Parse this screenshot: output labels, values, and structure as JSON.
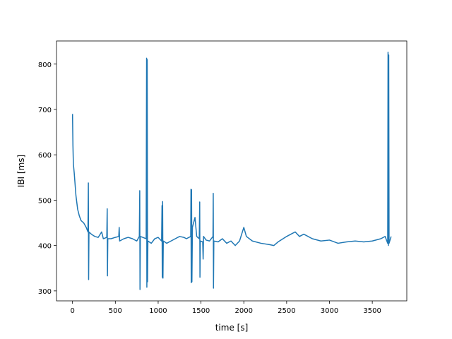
{
  "chart_data": {
    "type": "line",
    "xlabel": "time [s]",
    "ylabel": "IBI [ms]",
    "color": "#1f77b4",
    "x": [
      0,
      5,
      10,
      20,
      40,
      60,
      80,
      100,
      130,
      160,
      180,
      185,
      188,
      192,
      220,
      260,
      300,
      340,
      360,
      400,
      405,
      408,
      412,
      450,
      500,
      540,
      545,
      550,
      600,
      650,
      700,
      750,
      780,
      785,
      788,
      792,
      820,
      860,
      865,
      868,
      872,
      876,
      880,
      920,
      960,
      1000,
      1040,
      1045,
      1048,
      1052,
      1056,
      1060,
      1100,
      1150,
      1200,
      1250,
      1300,
      1330,
      1380,
      1383,
      1386,
      1390,
      1394,
      1400,
      1430,
      1450,
      1480,
      1485,
      1488,
      1492,
      1520,
      1525,
      1530,
      1560,
      1600,
      1640,
      1643,
      1646,
      1650,
      1700,
      1750,
      1800,
      1850,
      1900,
      1950,
      2000,
      2030,
      2100,
      2200,
      2300,
      2350,
      2400,
      2500,
      2550,
      2600,
      2650,
      2700,
      2800,
      2900,
      3000,
      3100,
      3200,
      3300,
      3400,
      3500,
      3600,
      3650,
      3680,
      3684,
      3688,
      3692,
      3696,
      3720
    ],
    "values": [
      690,
      620,
      580,
      560,
      510,
      480,
      465,
      455,
      450,
      440,
      430,
      538,
      325,
      430,
      425,
      420,
      418,
      430,
      415,
      418,
      481,
      333,
      415,
      415,
      418,
      420,
      440,
      410,
      415,
      418,
      415,
      410,
      420,
      521,
      303,
      420,
      418,
      415,
      813,
      308,
      810,
      320,
      410,
      405,
      415,
      418,
      410,
      488,
      330,
      497,
      328,
      410,
      405,
      410,
      415,
      420,
      418,
      415,
      420,
      524,
      318,
      523,
      320,
      440,
      462,
      420,
      415,
      496,
      330,
      410,
      408,
      370,
      420,
      412,
      410,
      420,
      515,
      306,
      410,
      408,
      415,
      405,
      410,
      400,
      410,
      440,
      420,
      410,
      405,
      402,
      400,
      408,
      420,
      425,
      430,
      420,
      425,
      415,
      410,
      412,
      405,
      408,
      410,
      408,
      410,
      415,
      420,
      405,
      826,
      400,
      820,
      405,
      420
    ],
    "xlim": [
      -187,
      3903
    ],
    "ylim": [
      278,
      851
    ],
    "xticks": [
      0,
      500,
      1000,
      1500,
      2000,
      2500,
      3000,
      3500
    ],
    "yticks": [
      300,
      400,
      500,
      600,
      700,
      800
    ]
  }
}
